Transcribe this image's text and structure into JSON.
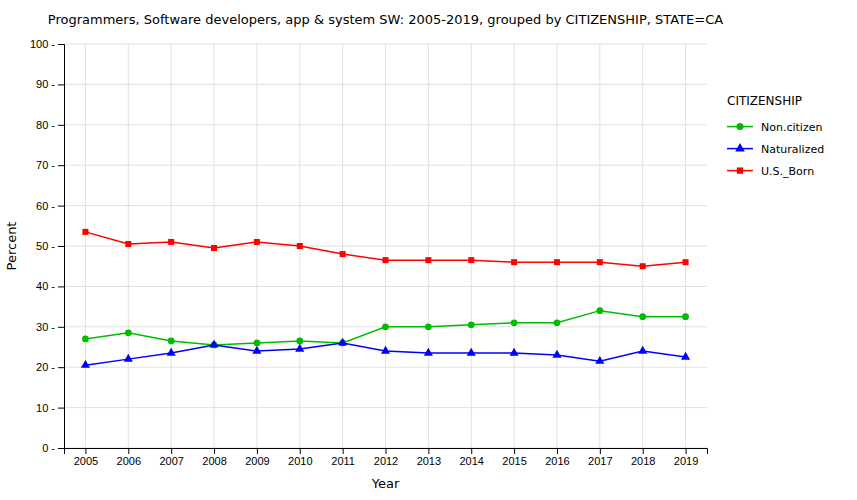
{
  "chart_data": {
    "type": "line",
    "title": "Programmers, Software developers, app & system SW: 2005-2019, grouped by CITIZENSHIP, STATE=CA",
    "x_label": "Year",
    "y_label": "Percent",
    "legend_title": "CITIZENSHIP",
    "x": [
      2005,
      2006,
      2007,
      2008,
      2009,
      2010,
      2011,
      2012,
      2013,
      2014,
      2015,
      2016,
      2017,
      2018,
      2019
    ],
    "series": [
      {
        "name": "Non.citizen",
        "color": "#00BB00",
        "marker": "circle",
        "values": [
          27,
          28.5,
          26.5,
          25.5,
          26,
          26.5,
          26,
          30,
          30,
          30.5,
          31,
          31,
          34,
          32.5,
          32.5
        ]
      },
      {
        "name": "Naturalized",
        "color": "#0000FF",
        "marker": "triangle",
        "values": [
          20.5,
          22,
          23.5,
          25.5,
          24,
          24.5,
          26,
          24,
          23.5,
          23.5,
          23.5,
          23,
          21.5,
          24,
          22.5
        ]
      },
      {
        "name": "U.S._Born",
        "color": "#FF0000",
        "marker": "square",
        "values": [
          53.5,
          50.5,
          51,
          49.5,
          51,
          50,
          48,
          46.5,
          46.5,
          46.5,
          46,
          46,
          46,
          45,
          46
        ]
      }
    ],
    "xlim": [
      2004.5,
      2019.5
    ],
    "xticks": [
      2005,
      2006,
      2007,
      2008,
      2009,
      2010,
      2011,
      2012,
      2013,
      2014,
      2015,
      2016,
      2017,
      2018,
      2019
    ],
    "ylim": [
      0,
      100
    ],
    "yticks": [
      {
        "value": 0,
        "label": "0 -"
      },
      {
        "value": 10,
        "label": "10 -"
      },
      {
        "value": 20,
        "label": "20 -"
      },
      {
        "value": 30,
        "label": "30 -"
      },
      {
        "value": 40,
        "label": "40 -"
      },
      {
        "value": 50,
        "label": "50 -"
      },
      {
        "value": 60,
        "label": "60 -"
      },
      {
        "value": 70,
        "label": "70 -"
      },
      {
        "value": 80,
        "label": "80 -"
      },
      {
        "value": 90,
        "label": "90 -"
      },
      {
        "value": 100,
        "label": "100 -"
      }
    ],
    "grid": true,
    "legend": "right"
  }
}
